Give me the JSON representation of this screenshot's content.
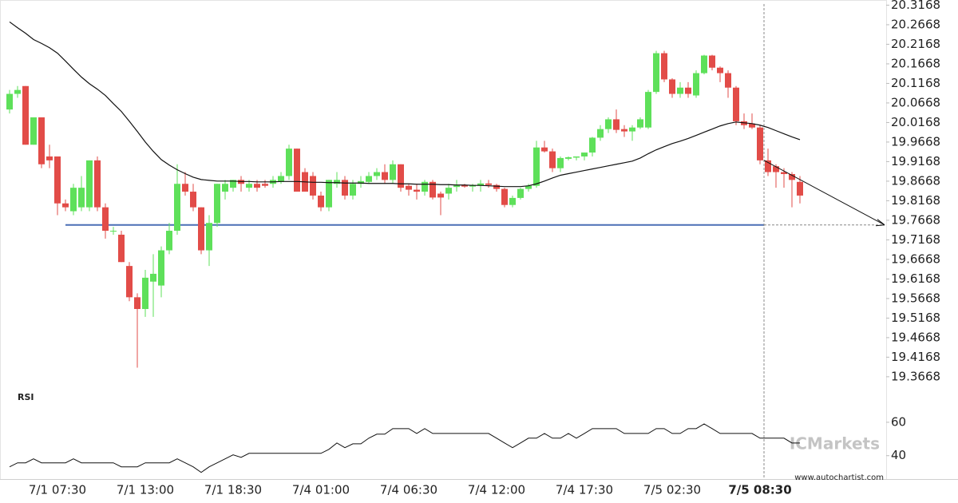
{
  "chart_data": [
    {
      "type": "candlestick",
      "categories": [
        null,
        null,
        null,
        null,
        null,
        null,
        "7/1 07:30",
        null,
        null,
        null,
        null,
        null,
        null,
        null,
        null,
        null,
        null,
        "7/1 13:00",
        null,
        null,
        null,
        null,
        null,
        null,
        null,
        null,
        null,
        null,
        "7/1 18:30",
        null,
        null,
        null,
        null,
        null,
        null,
        null,
        null,
        null,
        null,
        "7/4 01:00",
        null,
        null,
        null,
        null,
        null,
        null,
        null,
        null,
        null,
        null,
        "7/4 06:30",
        null,
        null,
        null,
        null,
        null,
        null,
        null,
        null,
        null,
        null,
        "7/4 12:00",
        null,
        null,
        null,
        null,
        null,
        null,
        null,
        null,
        null,
        null,
        "7/4 17:30",
        null,
        null,
        null,
        null,
        null,
        null,
        null,
        null,
        null,
        null,
        "7/5 02:30",
        null,
        null,
        null,
        null,
        null,
        null,
        null,
        null,
        null,
        null,
        "7/5 08:30",
        null,
        null,
        null,
        null,
        null
      ],
      "open": [
        20.05,
        20.09,
        20.11,
        19.96,
        20.03,
        19.93,
        19.93,
        19.81,
        19.79,
        19.8,
        19.8,
        19.92,
        19.8,
        19.74,
        19.73,
        19.65,
        19.57,
        19.54,
        19.61,
        19.6,
        19.69,
        19.74,
        19.86,
        19.84,
        19.8,
        19.69,
        19.76,
        19.84,
        19.85,
        19.87,
        19.85,
        19.86,
        19.86,
        19.86,
        19.865,
        19.88,
        19.95,
        19.89,
        19.88,
        19.83,
        19.8,
        19.86,
        19.87,
        19.83,
        19.86,
        19.865,
        19.88,
        19.89,
        19.87,
        19.91,
        19.855,
        19.845,
        19.84,
        19.865,
        19.835,
        19.835,
        19.852,
        19.857,
        19.853,
        19.855,
        19.861,
        19.857,
        19.847,
        19.806,
        19.824,
        19.847,
        19.855,
        19.953,
        19.943,
        19.9,
        19.924,
        19.927,
        19.93,
        19.94,
        19.978,
        20.0,
        20.025,
        20.0,
        19.994,
        20.004,
        20.004,
        20.095,
        20.194,
        20.127,
        20.09,
        20.106,
        20.086,
        20.143,
        20.188,
        20.157,
        20.143,
        20.106,
        20.02,
        20.014,
        20.004,
        19.92,
        19.905,
        19.89,
        19.885,
        19.865
      ],
      "high": [
        20.1,
        20.11,
        20.11,
        20.03,
        20.03,
        19.96,
        19.93,
        19.82,
        19.86,
        19.88,
        19.92,
        19.93,
        19.81,
        19.75,
        19.74,
        19.66,
        19.58,
        19.64,
        19.68,
        19.7,
        19.76,
        19.91,
        19.89,
        19.86,
        19.8,
        19.78,
        19.86,
        19.87,
        19.87,
        19.88,
        19.87,
        19.87,
        19.87,
        19.88,
        19.89,
        19.96,
        19.95,
        19.9,
        19.89,
        19.84,
        19.87,
        19.89,
        19.88,
        19.87,
        19.88,
        19.89,
        19.9,
        19.91,
        19.92,
        19.91,
        19.86,
        19.86,
        19.87,
        19.87,
        19.84,
        19.86,
        19.87,
        19.86,
        19.86,
        19.87,
        19.87,
        19.86,
        19.85,
        19.83,
        19.85,
        19.86,
        19.97,
        19.97,
        19.95,
        19.93,
        19.93,
        19.93,
        19.94,
        19.98,
        20.01,
        20.03,
        20.05,
        20.01,
        20.01,
        20.03,
        20.1,
        20.2,
        20.2,
        20.13,
        20.12,
        20.12,
        20.15,
        20.19,
        20.19,
        20.16,
        20.15,
        20.11,
        20.04,
        20.04,
        20.01,
        19.95,
        19.91,
        19.9,
        19.89,
        19.88
      ],
      "low": [
        20.04,
        20.08,
        19.96,
        19.96,
        19.9,
        19.9,
        19.78,
        19.79,
        19.78,
        19.79,
        19.79,
        19.79,
        19.72,
        19.73,
        19.66,
        19.56,
        19.39,
        19.52,
        19.52,
        19.57,
        19.68,
        19.73,
        19.83,
        19.79,
        19.68,
        19.65,
        19.75,
        19.82,
        19.84,
        19.84,
        19.84,
        19.84,
        19.85,
        19.85,
        19.86,
        19.87,
        19.84,
        19.84,
        19.82,
        19.79,
        19.79,
        19.85,
        19.82,
        19.82,
        19.85,
        19.86,
        19.87,
        19.86,
        19.86,
        19.84,
        19.83,
        19.82,
        19.83,
        19.82,
        19.78,
        19.82,
        19.84,
        19.85,
        19.84,
        19.84,
        19.85,
        19.84,
        19.8,
        19.8,
        19.82,
        19.84,
        19.85,
        19.94,
        19.89,
        19.89,
        19.92,
        19.92,
        19.92,
        19.93,
        19.97,
        19.99,
        19.99,
        19.98,
        19.97,
        20.0,
        20.0,
        20.09,
        20.12,
        20.08,
        20.08,
        20.08,
        20.08,
        20.14,
        20.15,
        20.12,
        20.08,
        20.01,
        20.0,
        20.0,
        19.91,
        19.88,
        19.85,
        19.85,
        19.8,
        19.81
      ],
      "close": [
        20.09,
        20.1,
        19.96,
        20.03,
        19.91,
        19.92,
        19.81,
        19.8,
        19.85,
        19.85,
        19.92,
        19.8,
        19.74,
        19.74,
        19.66,
        19.57,
        19.54,
        19.62,
        19.63,
        19.69,
        19.74,
        19.86,
        19.84,
        19.8,
        19.69,
        19.76,
        19.86,
        19.86,
        19.87,
        19.86,
        19.86,
        19.85,
        19.855,
        19.87,
        19.88,
        19.95,
        19.84,
        19.84,
        19.83,
        19.8,
        19.87,
        19.87,
        19.83,
        19.86,
        19.867,
        19.88,
        19.89,
        19.87,
        19.91,
        19.85,
        19.845,
        19.84,
        19.865,
        19.825,
        19.825,
        19.85,
        19.856,
        19.853,
        19.857,
        19.861,
        19.857,
        19.847,
        19.806,
        19.824,
        19.847,
        19.855,
        19.953,
        19.943,
        19.9,
        19.926,
        19.928,
        19.93,
        19.94,
        19.978,
        20.0,
        20.025,
        19.998,
        19.994,
        20.004,
        20.025,
        20.095,
        20.194,
        20.127,
        20.09,
        20.106,
        20.09,
        20.143,
        20.188,
        20.157,
        20.143,
        20.106,
        20.02,
        20.01,
        20.004,
        19.92,
        19.89,
        19.89,
        19.885,
        19.87,
        19.83
      ],
      "up_color": "#5ee05a",
      "down_color": "#e24c48",
      "moving_average": {
        "color": "#111111",
        "values": [
          20.274,
          20.259,
          20.245,
          20.229,
          20.219,
          20.208,
          20.194,
          20.174,
          20.153,
          20.133,
          20.116,
          20.102,
          20.086,
          20.065,
          20.045,
          20.02,
          19.994,
          19.967,
          19.943,
          19.922,
          19.908,
          19.896,
          19.886,
          19.877,
          19.871,
          19.869,
          19.867,
          19.867,
          19.867,
          19.866,
          19.866,
          19.865,
          19.865,
          19.865,
          19.866,
          19.866,
          19.866,
          19.865,
          19.864,
          19.864,
          19.863,
          19.863,
          19.862,
          19.862,
          19.862,
          19.861,
          19.861,
          19.861,
          19.861,
          19.86,
          19.86,
          19.859,
          19.859,
          19.859,
          19.858,
          19.858,
          19.857,
          19.857,
          19.856,
          19.856,
          19.855,
          19.854,
          19.853,
          19.853,
          19.853,
          19.855,
          19.86,
          19.867,
          19.875,
          19.882,
          19.886,
          19.89,
          19.894,
          19.898,
          19.902,
          19.906,
          19.91,
          19.914,
          19.918,
          19.926,
          19.937,
          19.947,
          19.955,
          19.963,
          19.969,
          19.976,
          19.984,
          19.992,
          20.0,
          20.008,
          20.014,
          20.018,
          20.016,
          20.014,
          20.01,
          20.004,
          19.996,
          19.988,
          19.98,
          19.973
        ]
      },
      "support_level": 19.755,
      "support_color": "#4a6fb5",
      "pattern": {
        "start": 19.92,
        "end": 19.755
      },
      "ylim": [
        19.34,
        20.33
      ],
      "yticks": [
        19.3668,
        19.4168,
        19.4668,
        19.5168,
        19.5668,
        19.6168,
        19.6668,
        19.7168,
        19.7668,
        19.8168,
        19.8668,
        19.9168,
        19.9668,
        20.0168,
        20.0668,
        20.1168,
        20.1668,
        20.2168,
        20.2668,
        20.3168
      ]
    },
    {
      "type": "line",
      "title": "RSI",
      "color": "#111111",
      "values": [
        33.3,
        35.7,
        35.7,
        38.1,
        35.7,
        35.7,
        35.7,
        35.7,
        38.1,
        35.7,
        35.7,
        35.7,
        35.7,
        35.7,
        33.3,
        33.3,
        33.3,
        35.7,
        35.7,
        35.7,
        35.7,
        38.1,
        35.7,
        33.3,
        30.0,
        33.3,
        35.7,
        38.1,
        40.5,
        39.0,
        41.4,
        41.4,
        41.4,
        41.4,
        41.4,
        41.4,
        41.4,
        41.4,
        41.4,
        41.4,
        43.8,
        47.6,
        44.8,
        47.1,
        47.1,
        50.5,
        52.9,
        52.9,
        56.2,
        56.2,
        56.2,
        53.3,
        56.2,
        53.3,
        53.3,
        53.3,
        53.3,
        53.3,
        53.3,
        53.3,
        53.3,
        50.5,
        47.6,
        44.8,
        47.6,
        50.5,
        50.5,
        53.3,
        50.5,
        50.5,
        53.3,
        50.5,
        53.3,
        56.2,
        56.2,
        56.2,
        56.2,
        53.3,
        53.3,
        53.3,
        53.3,
        56.2,
        56.2,
        53.3,
        53.3,
        56.2,
        56.2,
        59.0,
        56.2,
        53.3,
        53.3,
        53.3,
        53.3,
        53.3,
        50.5,
        50.5,
        50.5,
        50.5,
        47.6,
        47.6
      ],
      "ylim": [
        26,
        78.6
      ],
      "yticks": [
        40,
        60
      ]
    }
  ],
  "watermark": "ICMarkets",
  "source": "www.autochartist.com"
}
